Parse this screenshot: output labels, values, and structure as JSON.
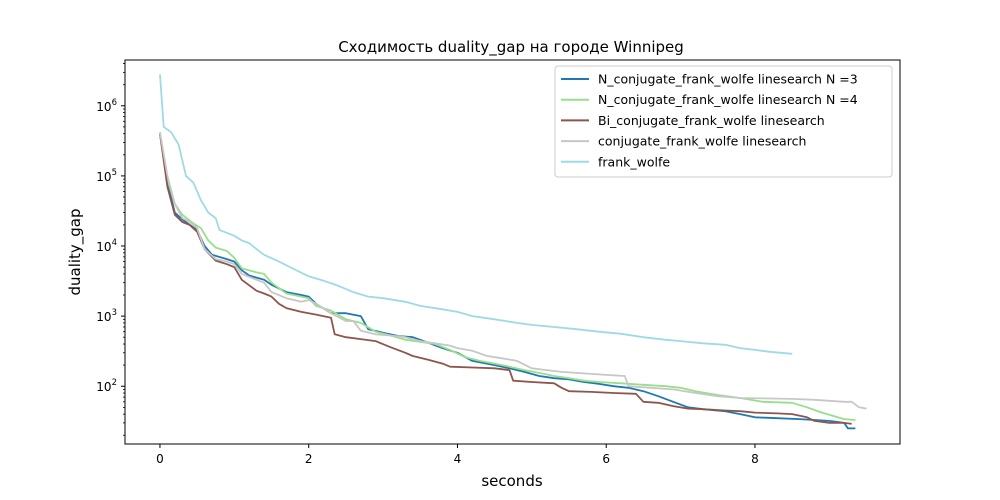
{
  "chart_data": {
    "type": "line",
    "title": "Сходимость duality_gap на городе Winnipeg",
    "xlabel": "seconds",
    "ylabel": "duality_gap",
    "xlim": [
      -0.47,
      9.95
    ],
    "ylim": [
      15,
      4500000
    ],
    "yscale": "log",
    "grid": false,
    "legend_position": "top-right",
    "x_ticks": [
      {
        "value": 0,
        "label": "0"
      },
      {
        "value": 2,
        "label": "2"
      },
      {
        "value": 4,
        "label": "4"
      },
      {
        "value": 6,
        "label": "6"
      },
      {
        "value": 8,
        "label": "8"
      }
    ],
    "y_ticks": [
      {
        "value": 100,
        "base": "10",
        "exp": "2"
      },
      {
        "value": 1000,
        "base": "10",
        "exp": "3"
      },
      {
        "value": 10000,
        "base": "10",
        "exp": "4"
      },
      {
        "value": 100000,
        "base": "10",
        "exp": "5"
      },
      {
        "value": 1000000,
        "base": "10",
        "exp": "6"
      }
    ],
    "series": [
      {
        "name": "N_conjugate_frank_wolfe linesearch N =3",
        "color": "#1f77b4",
        "points": [
          [
            0,
            400000
          ],
          [
            0.1,
            80000
          ],
          [
            0.2,
            30000
          ],
          [
            0.3,
            24000
          ],
          [
            0.4,
            20000
          ],
          [
            0.5,
            17000
          ],
          [
            0.6,
            10000
          ],
          [
            0.7,
            7500
          ],
          [
            0.9,
            6500
          ],
          [
            1.0,
            6000
          ],
          [
            1.1,
            4500
          ],
          [
            1.2,
            3800
          ],
          [
            1.4,
            3300
          ],
          [
            1.5,
            2800
          ],
          [
            1.7,
            2200
          ],
          [
            1.9,
            2000
          ],
          [
            2.0,
            1900
          ],
          [
            2.1,
            1500
          ],
          [
            2.3,
            1100
          ],
          [
            2.5,
            1100
          ],
          [
            2.7,
            1000
          ],
          [
            2.8,
            650
          ],
          [
            3.0,
            580
          ],
          [
            3.2,
            520
          ],
          [
            3.4,
            500
          ],
          [
            3.6,
            420
          ],
          [
            3.8,
            350
          ],
          [
            4.0,
            300
          ],
          [
            4.2,
            230
          ],
          [
            4.5,
            200
          ],
          [
            4.7,
            180
          ],
          [
            4.9,
            160
          ],
          [
            5.1,
            140
          ],
          [
            5.3,
            130
          ],
          [
            5.5,
            125
          ],
          [
            5.7,
            115
          ],
          [
            5.9,
            108
          ],
          [
            6.1,
            100
          ],
          [
            6.3,
            95
          ],
          [
            6.5,
            85
          ],
          [
            6.7,
            72
          ],
          [
            6.9,
            60
          ],
          [
            7.1,
            50
          ],
          [
            7.3,
            47
          ],
          [
            7.6,
            44
          ],
          [
            7.8,
            40
          ],
          [
            8.0,
            36
          ],
          [
            8.3,
            35
          ],
          [
            8.6,
            34
          ],
          [
            8.8,
            33
          ],
          [
            9.0,
            32
          ],
          [
            9.2,
            30
          ],
          [
            9.25,
            25
          ],
          [
            9.35,
            25
          ]
        ]
      },
      {
        "name": "N_conjugate_frank_wolfe linesearch N =4",
        "color": "#98df8a",
        "points": [
          [
            0,
            400000
          ],
          [
            0.1,
            90000
          ],
          [
            0.2,
            40000
          ],
          [
            0.3,
            28000
          ],
          [
            0.45,
            21000
          ],
          [
            0.55,
            18000
          ],
          [
            0.65,
            12000
          ],
          [
            0.75,
            9500
          ],
          [
            0.9,
            8500
          ],
          [
            1.0,
            6800
          ],
          [
            1.1,
            4800
          ],
          [
            1.3,
            4200
          ],
          [
            1.4,
            4000
          ],
          [
            1.5,
            3000
          ],
          [
            1.7,
            2100
          ],
          [
            1.9,
            1900
          ],
          [
            2.0,
            1800
          ],
          [
            2.1,
            1400
          ],
          [
            2.3,
            1200
          ],
          [
            2.5,
            900
          ],
          [
            2.7,
            800
          ],
          [
            2.9,
            600
          ],
          [
            3.1,
            530
          ],
          [
            3.3,
            460
          ],
          [
            3.5,
            430
          ],
          [
            3.7,
            400
          ],
          [
            3.9,
            330
          ],
          [
            4.1,
            260
          ],
          [
            4.3,
            230
          ],
          [
            4.5,
            210
          ],
          [
            4.7,
            190
          ],
          [
            4.9,
            170
          ],
          [
            5.1,
            155
          ],
          [
            5.3,
            140
          ],
          [
            5.5,
            130
          ],
          [
            5.7,
            120
          ],
          [
            5.9,
            115
          ],
          [
            6.2,
            110
          ],
          [
            6.5,
            105
          ],
          [
            6.8,
            100
          ],
          [
            7.0,
            95
          ],
          [
            7.2,
            85
          ],
          [
            7.5,
            75
          ],
          [
            7.8,
            68
          ],
          [
            8.1,
            60
          ],
          [
            8.5,
            58
          ],
          [
            8.7,
            50
          ],
          [
            8.9,
            42
          ],
          [
            9.2,
            34
          ],
          [
            9.35,
            33
          ]
        ]
      },
      {
        "name": "Bi_conjugate_frank_wolfe linesearch",
        "color": "#8c564b",
        "points": [
          [
            0,
            400000
          ],
          [
            0.1,
            70000
          ],
          [
            0.2,
            28000
          ],
          [
            0.3,
            22000
          ],
          [
            0.4,
            20000
          ],
          [
            0.5,
            16000
          ],
          [
            0.6,
            9000
          ],
          [
            0.75,
            6200
          ],
          [
            0.9,
            5500
          ],
          [
            1.0,
            5000
          ],
          [
            1.1,
            3300
          ],
          [
            1.3,
            2300
          ],
          [
            1.4,
            2100
          ],
          [
            1.5,
            1900
          ],
          [
            1.6,
            1500
          ],
          [
            1.7,
            1300
          ],
          [
            1.9,
            1150
          ],
          [
            2.1,
            1050
          ],
          [
            2.3,
            950
          ],
          [
            2.35,
            550
          ],
          [
            2.5,
            500
          ],
          [
            2.7,
            470
          ],
          [
            2.9,
            440
          ],
          [
            3.1,
            360
          ],
          [
            3.3,
            300
          ],
          [
            3.4,
            270
          ],
          [
            3.6,
            240
          ],
          [
            3.8,
            210
          ],
          [
            3.9,
            190
          ],
          [
            4.2,
            185
          ],
          [
            4.5,
            180
          ],
          [
            4.7,
            170
          ],
          [
            4.75,
            120
          ],
          [
            5.0,
            115
          ],
          [
            5.3,
            110
          ],
          [
            5.4,
            95
          ],
          [
            5.5,
            85
          ],
          [
            5.8,
            83
          ],
          [
            6.1,
            80
          ],
          [
            6.4,
            78
          ],
          [
            6.5,
            60
          ],
          [
            6.7,
            58
          ],
          [
            6.9,
            52
          ],
          [
            7.1,
            48
          ],
          [
            7.3,
            47
          ],
          [
            7.6,
            45
          ],
          [
            7.8,
            44
          ],
          [
            8.0,
            42
          ],
          [
            8.3,
            41
          ],
          [
            8.5,
            40
          ],
          [
            8.7,
            36
          ],
          [
            8.8,
            32
          ],
          [
            9.0,
            30
          ],
          [
            9.2,
            30
          ],
          [
            9.3,
            29
          ]
        ]
      },
      {
        "name": "conjugate_frank_wolfe linesearch",
        "color": "#c7c7c7",
        "points": [
          [
            0,
            420000
          ],
          [
            0.1,
            100000
          ],
          [
            0.2,
            40000
          ],
          [
            0.3,
            25000
          ],
          [
            0.4,
            22000
          ],
          [
            0.5,
            18000
          ],
          [
            0.6,
            9000
          ],
          [
            0.75,
            6500
          ],
          [
            0.9,
            6000
          ],
          [
            1.0,
            5500
          ],
          [
            1.1,
            4000
          ],
          [
            1.3,
            3300
          ],
          [
            1.4,
            3000
          ],
          [
            1.5,
            2200
          ],
          [
            1.7,
            1800
          ],
          [
            1.9,
            1600
          ],
          [
            2.0,
            1700
          ],
          [
            2.1,
            1500
          ],
          [
            2.3,
            1100
          ],
          [
            2.5,
            850
          ],
          [
            2.6,
            850
          ],
          [
            2.7,
            620
          ],
          [
            2.9,
            550
          ],
          [
            3.1,
            530
          ],
          [
            3.3,
            500
          ],
          [
            3.5,
            440
          ],
          [
            3.7,
            410
          ],
          [
            3.9,
            380
          ],
          [
            4.0,
            350
          ],
          [
            4.2,
            320
          ],
          [
            4.4,
            270
          ],
          [
            4.6,
            250
          ],
          [
            4.8,
            230
          ],
          [
            5.0,
            180
          ],
          [
            5.2,
            170
          ],
          [
            5.4,
            160
          ],
          [
            5.6,
            155
          ],
          [
            5.8,
            150
          ],
          [
            6.0,
            145
          ],
          [
            6.25,
            140
          ],
          [
            6.3,
            100
          ],
          [
            6.6,
            95
          ],
          [
            6.9,
            90
          ],
          [
            7.2,
            80
          ],
          [
            7.5,
            72
          ],
          [
            7.8,
            68
          ],
          [
            8.1,
            67
          ],
          [
            8.5,
            66
          ],
          [
            8.8,
            64
          ],
          [
            9.0,
            62
          ],
          [
            9.2,
            60
          ],
          [
            9.3,
            60
          ],
          [
            9.4,
            50
          ],
          [
            9.5,
            48
          ]
        ]
      },
      {
        "name": "frank_wolfe",
        "color": "#9edae5",
        "points": [
          [
            0,
            2800000
          ],
          [
            0.05,
            500000
          ],
          [
            0.15,
            420000
          ],
          [
            0.25,
            280000
          ],
          [
            0.35,
            100000
          ],
          [
            0.45,
            80000
          ],
          [
            0.55,
            45000
          ],
          [
            0.65,
            30000
          ],
          [
            0.75,
            25000
          ],
          [
            0.8,
            17000
          ],
          [
            1.0,
            14000
          ],
          [
            1.1,
            12000
          ],
          [
            1.2,
            11000
          ],
          [
            1.3,
            9000
          ],
          [
            1.4,
            7500
          ],
          [
            1.6,
            6000
          ],
          [
            1.8,
            4700
          ],
          [
            2.0,
            3700
          ],
          [
            2.2,
            3200
          ],
          [
            2.4,
            2700
          ],
          [
            2.6,
            2200
          ],
          [
            2.8,
            1900
          ],
          [
            3.0,
            1800
          ],
          [
            3.3,
            1600
          ],
          [
            3.5,
            1400
          ],
          [
            3.8,
            1250
          ],
          [
            4.0,
            1150
          ],
          [
            4.2,
            1000
          ],
          [
            4.5,
            900
          ],
          [
            4.8,
            800
          ],
          [
            5.0,
            750
          ],
          [
            5.3,
            700
          ],
          [
            5.6,
            650
          ],
          [
            5.9,
            600
          ],
          [
            6.2,
            560
          ],
          [
            6.5,
            500
          ],
          [
            6.8,
            460
          ],
          [
            7.0,
            440
          ],
          [
            7.3,
            410
          ],
          [
            7.6,
            390
          ],
          [
            7.8,
            350
          ],
          [
            8.0,
            330
          ],
          [
            8.2,
            310
          ],
          [
            8.5,
            290
          ]
        ]
      }
    ]
  }
}
